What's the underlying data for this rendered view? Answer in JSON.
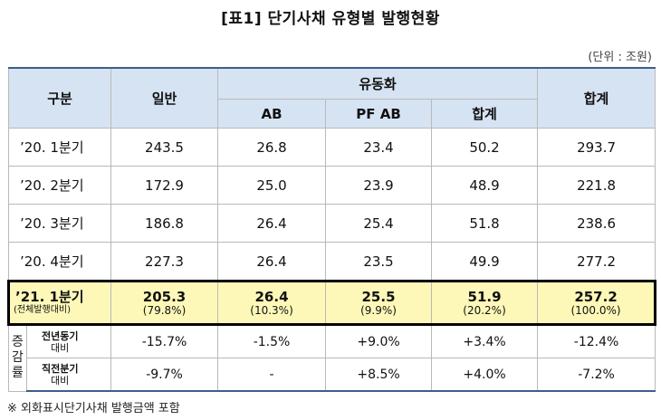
{
  "title": "[표1] 단기사채 유형별 발행현황",
  "unit": "(단위 : 조원)",
  "header": {
    "category": "구분",
    "general": "일반",
    "securitized": "유동화",
    "ab": "AB",
    "pf_ab": "PF AB",
    "sec_total": "합계",
    "total": "합계"
  },
  "rows": [
    {
      "label": "’20. 1분기",
      "general": "243.5",
      "ab": "26.8",
      "pf_ab": "23.4",
      "sec_total": "50.2",
      "total": "293.7"
    },
    {
      "label": "’20. 2분기",
      "general": "172.9",
      "ab": "25.0",
      "pf_ab": "23.9",
      "sec_total": "48.9",
      "total": "221.8"
    },
    {
      "label": "’20. 3분기",
      "general": "186.8",
      "ab": "26.4",
      "pf_ab": "25.4",
      "sec_total": "51.8",
      "total": "238.6"
    },
    {
      "label": "’20. 4분기",
      "general": "227.3",
      "ab": "26.4",
      "pf_ab": "23.5",
      "sec_total": "49.9",
      "total": "277.2"
    }
  ],
  "highlight": {
    "label": "’21. 1분기",
    "sublabel": "(전체발행대비)",
    "general": "205.3",
    "general_pct": "(79.8%)",
    "ab": "26.4",
    "ab_pct": "(10.3%)",
    "pf_ab": "25.5",
    "pf_ab_pct": "(9.9%)",
    "sec_total": "51.9",
    "sec_total_pct": "(20.2%)",
    "total": "257.2",
    "total_pct": "(100.0%)"
  },
  "change": {
    "label_lines": [
      "증",
      "감",
      "률"
    ],
    "yoy": {
      "label_top": "전년동기",
      "label_bottom": "대비",
      "general": "-15.7%",
      "ab": "-1.5%",
      "pf_ab": "+9.0%",
      "sec_total": "+3.4%",
      "total": "-12.4%"
    },
    "qoq": {
      "label_top": "직전분기",
      "label_bottom": "대비",
      "general": "-9.7%",
      "ab": "-",
      "pf_ab": "+8.5%",
      "sec_total": "+4.0%",
      "total": "-7.2%"
    }
  },
  "note": "※ 외화표시단기사채 발행금액 포함"
}
